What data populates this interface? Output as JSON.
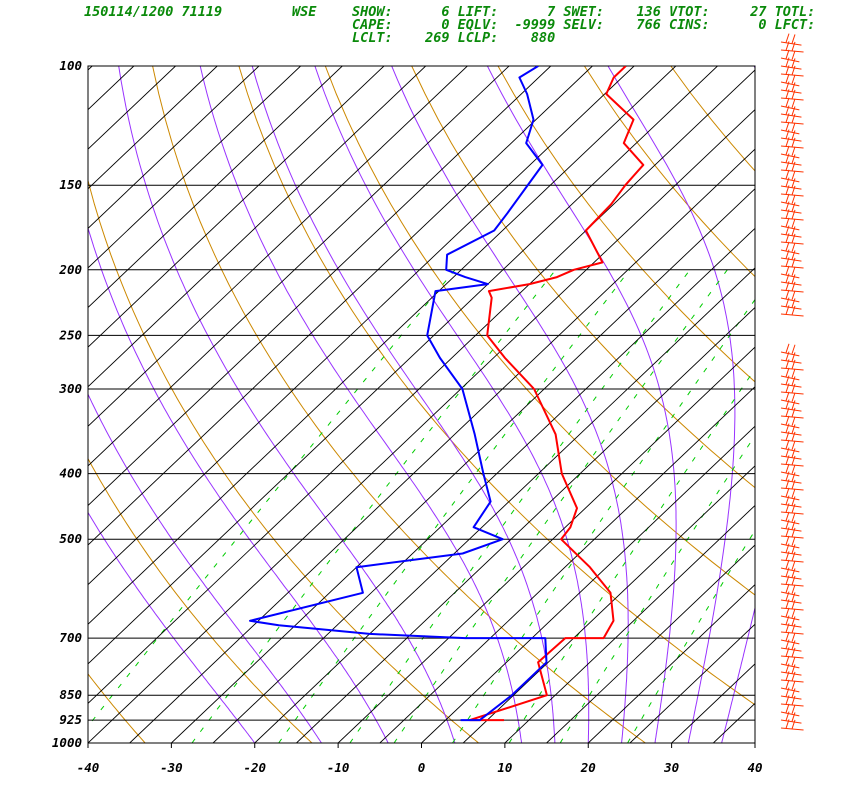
{
  "header": {
    "station_line": "150114/1200 71119",
    "station_id": "WSE",
    "indices": [
      [
        "SHOW:",
        "6",
        "LIFT:",
        "7",
        "SWET:",
        "136",
        "VTOT:",
        "27",
        "TOTL:",
        ""
      ],
      [
        "CAPE:",
        "0",
        "EQLV:",
        "-9999",
        "SELV:",
        "766",
        "CINS:",
        "0",
        "LFCT:",
        ""
      ],
      [
        "LCLT:",
        "269",
        "LCLP:",
        "880"
      ]
    ],
    "row_text": [
      "SHOW:      6 LIFT:      7 SWET:    136 VTOT:     27 TOTL:",
      "CAPE:      0 EQLV:  -9999 SELV:    766 CINS:      0 LFCT:",
      "LCLT:    269 LCLP:    880"
    ]
  },
  "colors": {
    "temperature": "#ff0000",
    "dewpoint": "#0000ff",
    "isotherm": "#000000",
    "dry_adiabat": "#cc8800",
    "moist_adiabat": "#9933ff",
    "mixing_ratio": "#00cc00",
    "wind_barb": "#ff3300",
    "header_text": "#0a8a0a"
  },
  "chart_data": {
    "type": "skew-t log-p",
    "x_axis": {
      "label": "",
      "ticks": [
        -40,
        -30,
        -20,
        -10,
        0,
        10,
        20,
        30,
        40
      ],
      "range": [
        -40,
        40
      ],
      "units": "C at 1000 hPa"
    },
    "y_axis": {
      "label": "",
      "ticks": [
        100,
        150,
        200,
        250,
        300,
        400,
        500,
        700,
        850,
        925,
        1000
      ],
      "range": [
        1000,
        100
      ],
      "scale": "log"
    },
    "isobars": [
      100,
      150,
      200,
      250,
      300,
      400,
      500,
      700,
      850,
      925,
      1000
    ],
    "series": [
      {
        "key": "temperature",
        "points": [
          [
            925,
            7.0
          ],
          [
            925,
            2.9
          ],
          [
            850,
            9.0
          ],
          [
            760,
            3.8
          ],
          [
            700,
            4.0
          ],
          [
            700,
            8.6
          ],
          [
            660,
            7.6
          ],
          [
            600,
            3.7
          ],
          [
            550,
            -2.0
          ],
          [
            500,
            -9.0
          ],
          [
            480,
            -9.4
          ],
          [
            450,
            -11.0
          ],
          [
            400,
            -17.2
          ],
          [
            350,
            -22.9
          ],
          [
            300,
            -31.2
          ],
          [
            270,
            -38.6
          ],
          [
            250,
            -43.6
          ],
          [
            220,
            -47.8
          ],
          [
            215,
            -49.0
          ],
          [
            210,
            -45.0
          ],
          [
            205,
            -42.6
          ],
          [
            200,
            -41.5
          ],
          [
            195,
            -39.0
          ],
          [
            175,
            -45.0
          ],
          [
            160,
            -45.3
          ],
          [
            150,
            -46.0
          ],
          [
            140,
            -46.4
          ],
          [
            130,
            -51.5
          ],
          [
            120,
            -53.3
          ],
          [
            110,
            -59.8
          ],
          [
            104,
            -61.0
          ],
          [
            100,
            -61.0
          ]
        ]
      },
      {
        "key": "dewpoint",
        "points": [
          [
            925,
            1.8
          ],
          [
            925,
            4.1
          ],
          [
            850,
            4.8
          ],
          [
            760,
            4.8
          ],
          [
            700,
            1.6
          ],
          [
            700,
            -8.0
          ],
          [
            690,
            -20.0
          ],
          [
            670,
            -32.0
          ],
          [
            660,
            -36.0
          ],
          [
            600,
            -26.0
          ],
          [
            550,
            -30.0
          ],
          [
            525,
            -19.0
          ],
          [
            500,
            -16.0
          ],
          [
            480,
            -21.0
          ],
          [
            440,
            -22.2
          ],
          [
            400,
            -26.6
          ],
          [
            350,
            -32.6
          ],
          [
            300,
            -39.8
          ],
          [
            270,
            -46.4
          ],
          [
            250,
            -50.8
          ],
          [
            215,
            -55.4
          ],
          [
            210,
            -50.0
          ],
          [
            205,
            -53.6
          ],
          [
            200,
            -56.8
          ],
          [
            190,
            -58.6
          ],
          [
            175,
            -56.0
          ],
          [
            165,
            -56.6
          ],
          [
            140,
            -58.5
          ],
          [
            130,
            -63.2
          ],
          [
            120,
            -65.3
          ],
          [
            110,
            -69.3
          ],
          [
            104,
            -72.3
          ],
          [
            100,
            -71.5
          ]
        ]
      }
    ],
    "wind_barbs_shown": true
  }
}
